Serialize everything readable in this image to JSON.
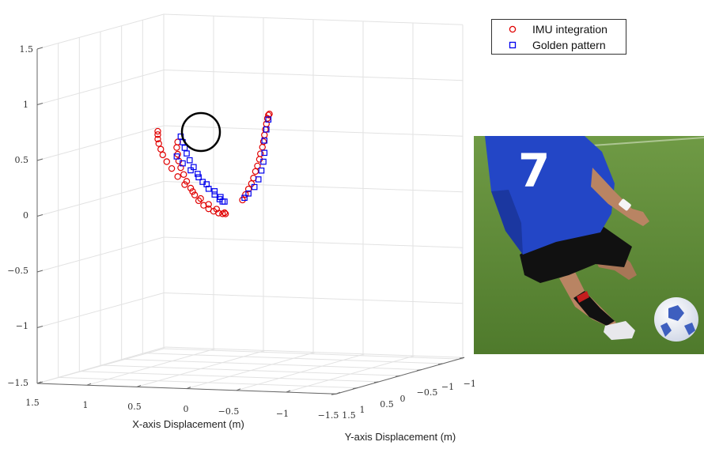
{
  "chart_data": {
    "type": "scatter",
    "dimensions": 3,
    "xlabel": "X-axis Displacement (m)",
    "ylabel": "Y-axis Displacement (m)",
    "zlabel": "",
    "xlim": [
      -1.5,
      1.5
    ],
    "ylim": [
      -1.5,
      1.5
    ],
    "zlim": [
      -1.5,
      1.5
    ],
    "x_ticks": [
      "1.5",
      "1",
      "0.5",
      "0",
      "−0.5",
      "−1",
      "−1.5"
    ],
    "y_ticks": [
      "1.5",
      "1",
      "0.5",
      "0",
      "−0.5",
      "−1",
      "−1.5"
    ],
    "z_ticks": [
      "1.5",
      "1",
      "0.5",
      "0",
      "−0.5",
      "−1",
      "−1.5"
    ],
    "z_tick_values": [
      1.5,
      1,
      0.5,
      0,
      -0.5,
      -1,
      -1.5
    ],
    "grid": true,
    "legend_position": "top-right",
    "series": [
      {
        "name": "IMU integration",
        "marker": "circle",
        "color": "#e00000",
        "points_xz": [
          [
            0.09,
            0.71
          ],
          [
            0.1,
            0.66
          ],
          [
            0.09,
            0.6
          ],
          [
            0.08,
            0.54
          ],
          [
            0.06,
            0.48
          ],
          [
            0.03,
            0.42
          ],
          [
            0.0,
            0.36
          ],
          [
            -0.04,
            0.3
          ],
          [
            -0.08,
            0.24
          ],
          [
            -0.12,
            0.19
          ],
          [
            -0.17,
            0.15
          ],
          [
            -0.22,
            0.12
          ],
          [
            -0.27,
            0.1
          ],
          [
            -0.32,
            0.085
          ],
          [
            -0.36,
            0.08
          ],
          [
            -0.39,
            0.08
          ],
          [
            -0.38,
            0.09
          ],
          [
            -0.3,
            0.12
          ],
          [
            -0.22,
            0.16
          ],
          [
            -0.14,
            0.21
          ],
          [
            -0.06,
            0.27
          ],
          [
            0.02,
            0.33
          ],
          [
            0.09,
            0.4
          ],
          [
            0.15,
            0.47
          ],
          [
            0.2,
            0.53
          ],
          [
            0.24,
            0.59
          ],
          [
            0.26,
            0.64
          ],
          [
            0.28,
            0.69
          ],
          [
            0.29,
            0.73
          ],
          [
            0.29,
            0.77
          ],
          [
            0.29,
            0.8
          ],
          [
            -0.56,
            0.21
          ],
          [
            -0.59,
            0.26
          ],
          [
            -0.62,
            0.31
          ],
          [
            -0.65,
            0.36
          ],
          [
            -0.67,
            0.41
          ],
          [
            -0.69,
            0.47
          ],
          [
            -0.71,
            0.52
          ],
          [
            -0.73,
            0.58
          ],
          [
            -0.74,
            0.63
          ],
          [
            -0.76,
            0.69
          ],
          [
            -0.77,
            0.74
          ],
          [
            -0.78,
            0.8
          ],
          [
            -0.79,
            0.85
          ],
          [
            -0.8,
            0.9
          ],
          [
            -0.81,
            0.95
          ],
          [
            -0.82,
            0.98
          ],
          [
            -0.83,
            0.99
          ]
        ]
      },
      {
        "name": "Golden pattern",
        "marker": "square",
        "color": "#0000ee",
        "points_xz": [
          [
            0.06,
            0.76
          ],
          [
            0.04,
            0.71
          ],
          [
            0.02,
            0.66
          ],
          [
            0.0,
            0.61
          ],
          [
            -0.03,
            0.55
          ],
          [
            -0.07,
            0.49
          ],
          [
            -0.11,
            0.43
          ],
          [
            -0.16,
            0.36
          ],
          [
            -0.22,
            0.3
          ],
          [
            -0.28,
            0.25
          ],
          [
            -0.33,
            0.21
          ],
          [
            -0.36,
            0.19
          ],
          [
            -0.38,
            0.19
          ],
          [
            -0.34,
            0.23
          ],
          [
            -0.28,
            0.28
          ],
          [
            -0.2,
            0.34
          ],
          [
            -0.12,
            0.4
          ],
          [
            -0.04,
            0.46
          ],
          [
            0.04,
            0.52
          ],
          [
            0.1,
            0.58
          ],
          [
            -0.58,
            0.23
          ],
          [
            -0.62,
            0.27
          ],
          [
            -0.68,
            0.33
          ],
          [
            -0.72,
            0.4
          ],
          [
            -0.75,
            0.48
          ],
          [
            -0.77,
            0.56
          ],
          [
            -0.78,
            0.64
          ],
          [
            -0.78,
            0.75
          ],
          [
            -0.8,
            0.85
          ],
          [
            -0.82,
            0.94
          ]
        ]
      }
    ]
  },
  "photo": {
    "jersey_number": "7",
    "colors": {
      "grass": "#5e8a36",
      "jersey": "#2346c6",
      "shorts": "#111111",
      "skin": "#b98463",
      "ball": "#f4f6fb"
    }
  }
}
